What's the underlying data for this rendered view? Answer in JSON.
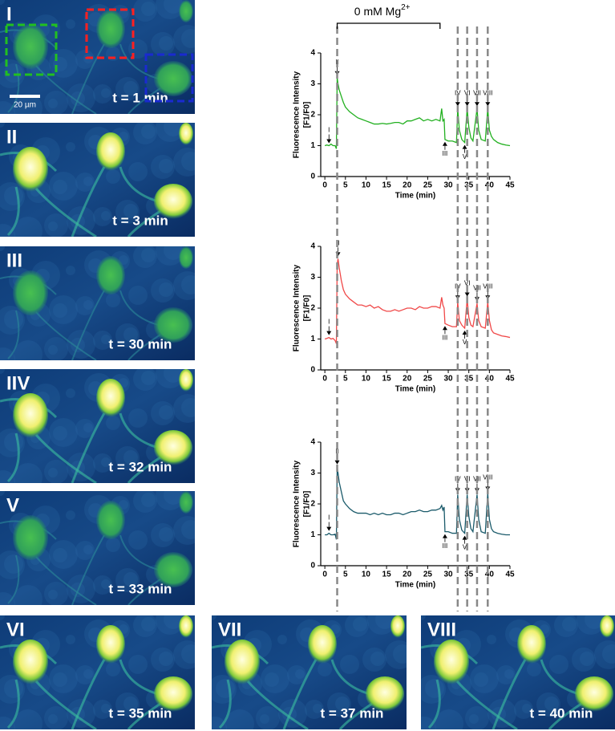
{
  "panels": [
    {
      "label": "I",
      "time": "t = 1 min"
    },
    {
      "label": "II",
      "time": "t = 3  min"
    },
    {
      "label": "III",
      "time": "t = 30  min"
    },
    {
      "label": "IIV",
      "time": "t = 32  min"
    },
    {
      "label": "V",
      "time": "t = 33  min"
    },
    {
      "label": "VI",
      "time": "t = 35  min"
    },
    {
      "label": "VII",
      "time": "t = 37  min"
    },
    {
      "label": "VIII",
      "time": "t = 40  min"
    }
  ],
  "scale_bar": "20 µm",
  "stimulus": {
    "label": "0 mM Mg",
    "superscript": "2+",
    "xrange": [
      3,
      28
    ]
  },
  "event_lines": [
    3,
    32.3,
    34.6,
    37,
    39.6
  ],
  "chart_data": [
    {
      "type": "line",
      "xlabel": "Time (min)",
      "ylabel": [
        "Fluorescence Intensity",
        "[F1/F0]"
      ],
      "xlim": [
        -1,
        45
      ],
      "ylim": [
        0,
        4
      ],
      "xticks": [
        0,
        5,
        10,
        15,
        20,
        25,
        30,
        35,
        40,
        45
      ],
      "yticks": [
        0,
        1,
        2,
        3,
        4
      ],
      "series": [
        {
          "color": "#22b020",
          "x": [
            0,
            0.5,
            1,
            1.5,
            2,
            2.5,
            2.8,
            3,
            3.2,
            3.5,
            4,
            4.5,
            5,
            6,
            7,
            8,
            9,
            10,
            11,
            12,
            13,
            14,
            15,
            16,
            17,
            18,
            19,
            20,
            21,
            22,
            23,
            24,
            25,
            26,
            27,
            28,
            28.4,
            28.7,
            29,
            29.2,
            30,
            31,
            32,
            32.3,
            32.7,
            33.3,
            34,
            34.6,
            35,
            35.5,
            36,
            37,
            37.4,
            38,
            39,
            39.6,
            40,
            40.5,
            41,
            42,
            43,
            44,
            45
          ],
          "values": [
            1.0,
            1.02,
            1.0,
            1.05,
            1.0,
            1.0,
            0.9,
            3.2,
            3.0,
            2.8,
            2.6,
            2.4,
            2.25,
            2.1,
            2.0,
            1.9,
            1.85,
            1.8,
            1.75,
            1.7,
            1.7,
            1.72,
            1.7,
            1.72,
            1.75,
            1.75,
            1.7,
            1.8,
            1.8,
            1.85,
            1.9,
            1.8,
            1.85,
            1.8,
            1.85,
            1.8,
            2.2,
            1.8,
            1.85,
            1.2,
            1.15,
            1.15,
            1.1,
            2.2,
            1.5,
            1.2,
            1.1,
            2.2,
            1.6,
            1.25,
            1.15,
            2.2,
            1.5,
            1.2,
            1.15,
            2.2,
            1.5,
            1.3,
            1.2,
            1.1,
            1.05,
            1.02,
            1.0
          ]
        }
      ],
      "annotations": [
        {
          "label": "I",
          "x": 1,
          "position": "above"
        },
        {
          "label": "II",
          "x": 3,
          "position": "above"
        },
        {
          "label": "III",
          "x": 29.2,
          "position": "below"
        },
        {
          "label": "IV",
          "x": 32.3,
          "position": "above"
        },
        {
          "label": "V",
          "x": 34,
          "position": "below"
        },
        {
          "label": "VI",
          "x": 34.6,
          "position": "above"
        },
        {
          "label": "VII",
          "x": 37,
          "position": "above"
        },
        {
          "label": "VIII",
          "x": 39.6,
          "position": "above"
        }
      ]
    },
    {
      "type": "line",
      "xlabel": "Time (min)",
      "ylabel": [
        "Fluorescence Intensity",
        "[F1/F0]"
      ],
      "xlim": [
        -1,
        45
      ],
      "ylim": [
        0,
        4
      ],
      "xticks": [
        0,
        5,
        10,
        15,
        20,
        25,
        30,
        35,
        40,
        45
      ],
      "yticks": [
        0,
        1,
        2,
        3,
        4
      ],
      "series": [
        {
          "color": "#f04848",
          "x": [
            0,
            0.5,
            1,
            1.5,
            2,
            2.5,
            2.8,
            3,
            3.2,
            3.5,
            4,
            4.5,
            5,
            6,
            7,
            8,
            9,
            10,
            11,
            12,
            13,
            14,
            15,
            16,
            17,
            18,
            19,
            20,
            21,
            22,
            23,
            24,
            25,
            26,
            27,
            28,
            28.4,
            28.7,
            29,
            29.2,
            30,
            31,
            32,
            32.3,
            32.7,
            33.3,
            34,
            34.6,
            35,
            35.5,
            36,
            37,
            37.4,
            38,
            39,
            39.6,
            40,
            40.5,
            41,
            42,
            43,
            44,
            45
          ],
          "values": [
            1.0,
            1.02,
            1.05,
            1.0,
            1.02,
            0.95,
            0.85,
            3.4,
            3.6,
            3.3,
            2.9,
            2.6,
            2.45,
            2.3,
            2.2,
            2.1,
            2.1,
            2.05,
            2.1,
            2.0,
            2.05,
            1.95,
            1.9,
            1.9,
            1.95,
            1.9,
            1.95,
            2.0,
            2.0,
            1.95,
            2.05,
            2.0,
            2.0,
            2.05,
            2.05,
            2.0,
            2.35,
            2.1,
            2.0,
            1.5,
            1.45,
            1.4,
            1.4,
            2.2,
            1.6,
            1.45,
            1.35,
            2.3,
            1.7,
            1.45,
            1.4,
            2.15,
            1.6,
            1.4,
            1.35,
            2.2,
            1.6,
            1.3,
            1.2,
            1.15,
            1.1,
            1.08,
            1.05
          ]
        }
      ],
      "annotations": [
        {
          "label": "I",
          "x": 1,
          "position": "above"
        },
        {
          "label": "II",
          "x": 3.2,
          "position": "above"
        },
        {
          "label": "III",
          "x": 29.2,
          "position": "below"
        },
        {
          "label": "IV",
          "x": 32.3,
          "position": "above"
        },
        {
          "label": "V",
          "x": 34,
          "position": "below"
        },
        {
          "label": "VI",
          "x": 34.6,
          "position": "above"
        },
        {
          "label": "VII",
          "x": 37,
          "position": "above"
        },
        {
          "label": "VIII",
          "x": 39.6,
          "position": "above"
        }
      ]
    },
    {
      "type": "line",
      "xlabel": "Time (min)",
      "ylabel": [
        "Fluorescence Intensity",
        "[F1/F0]"
      ],
      "xlim": [
        -1,
        45
      ],
      "ylim": [
        0,
        4
      ],
      "xticks": [
        0,
        5,
        10,
        15,
        20,
        25,
        30,
        35,
        40,
        45
      ],
      "yticks": [
        0,
        1,
        2,
        3,
        4
      ],
      "series": [
        {
          "color": "#1a5a6a",
          "x": [
            0,
            0.5,
            1,
            1.5,
            2,
            2.5,
            2.8,
            3,
            3.2,
            3.5,
            4,
            4.5,
            5,
            6,
            7,
            8,
            9,
            10,
            11,
            12,
            13,
            14,
            15,
            16,
            17,
            18,
            19,
            20,
            21,
            22,
            23,
            24,
            25,
            26,
            27,
            28,
            28.4,
            28.7,
            29,
            29.2,
            30,
            31,
            32,
            32.3,
            32.7,
            33.3,
            34,
            34.6,
            35,
            35.5,
            36,
            37,
            37.4,
            38,
            39,
            39.6,
            40,
            40.5,
            41,
            42,
            43,
            44,
            45
          ],
          "values": [
            1.0,
            1.0,
            1.05,
            1.0,
            1.0,
            1.02,
            0.85,
            3.2,
            3.0,
            2.7,
            2.4,
            2.1,
            2.0,
            1.85,
            1.75,
            1.7,
            1.7,
            1.7,
            1.65,
            1.7,
            1.65,
            1.7,
            1.65,
            1.65,
            1.7,
            1.7,
            1.65,
            1.7,
            1.75,
            1.75,
            1.8,
            1.75,
            1.75,
            1.8,
            1.8,
            1.85,
            1.95,
            1.8,
            1.9,
            1.1,
            1.1,
            1.05,
            1.05,
            2.3,
            1.5,
            1.15,
            1.05,
            2.3,
            1.6,
            1.2,
            1.1,
            2.3,
            1.5,
            1.1,
            1.05,
            2.35,
            1.5,
            1.2,
            1.1,
            1.05,
            1.02,
            1.0,
            1.0
          ]
        }
      ],
      "annotations": [
        {
          "label": "I",
          "x": 1,
          "position": "above"
        },
        {
          "label": "II",
          "x": 3,
          "position": "above"
        },
        {
          "label": "III",
          "x": 29.2,
          "position": "below"
        },
        {
          "label": "IV",
          "x": 32.3,
          "position": "above"
        },
        {
          "label": "V",
          "x": 34,
          "position": "below"
        },
        {
          "label": "VI",
          "x": 34.6,
          "position": "above"
        },
        {
          "label": "VII",
          "x": 37,
          "position": "above"
        },
        {
          "label": "VIII",
          "x": 39.6,
          "position": "above"
        }
      ]
    }
  ]
}
